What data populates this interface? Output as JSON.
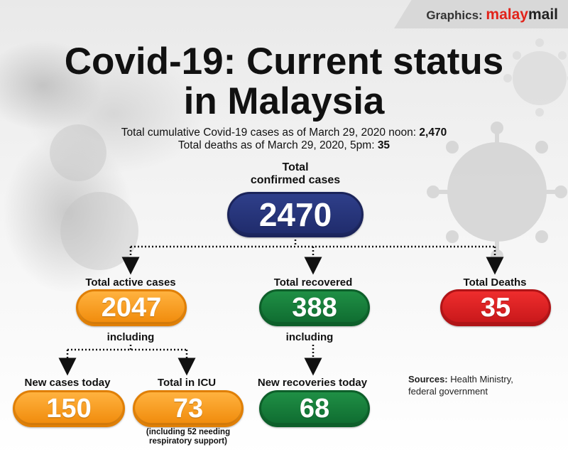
{
  "header": {
    "credit_prefix": "Graphics:",
    "brand_part1": "malay",
    "brand_part2": "mail"
  },
  "title": {
    "line1": "Covid-19: Current status",
    "line2": "in Malaysia"
  },
  "subtitle": {
    "cumulative_label": "Total cumulative Covid-19 cases as of March 29, 2020 noon:",
    "cumulative_value": "2,470",
    "deaths_label": "Total deaths as of March 29, 2020, 5pm:",
    "deaths_value": "35"
  },
  "nodes": {
    "confirmed": {
      "label_line1": "Total",
      "label_line2": "confirmed cases",
      "value": "2470"
    },
    "active": {
      "label": "Total active cases",
      "value": "2047"
    },
    "recovered": {
      "label": "Total recovered",
      "value": "388"
    },
    "deaths": {
      "label": "Total Deaths",
      "value": "35"
    },
    "active_including": "including",
    "recovered_including": "including",
    "new_cases": {
      "label": "New cases today",
      "value": "150"
    },
    "icu": {
      "label": "Total in ICU",
      "value": "73",
      "note_line1": "(including 52 needing",
      "note_line2": "respiratory support)"
    },
    "new_recoveries": {
      "label": "New recoveries today",
      "value": "68"
    }
  },
  "sources": {
    "label": "Sources:",
    "text_line1": "Health Ministry,",
    "text_line2": "federal government"
  },
  "colors": {
    "navy": "#1f2b6b",
    "orange": "#f39a1c",
    "green": "#127036",
    "red": "#d81f22",
    "brand_red": "#e2231a"
  }
}
